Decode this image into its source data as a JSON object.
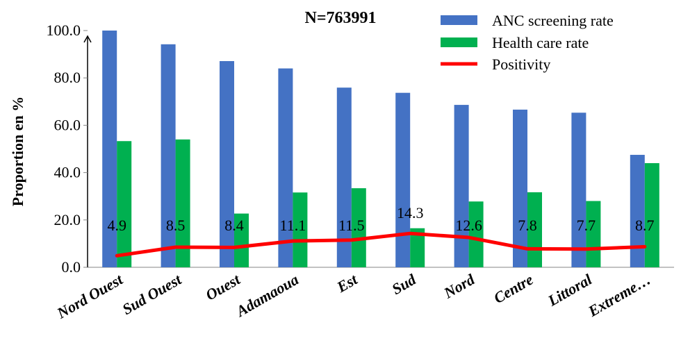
{
  "chart_data": {
    "type": "bar",
    "annotation": "N=763991",
    "ylabel": "Proportion en %",
    "xlabel": "",
    "ylim": [
      0,
      100
    ],
    "yticks": [
      "0.0",
      "20.0",
      "40.0",
      "60.0",
      "80.0",
      "100.0"
    ],
    "categories": [
      "Nord Ouest",
      "Sud Ouest",
      "Ouest",
      "Adamaoua",
      "Est",
      "Sud",
      "Nord",
      "Centre",
      "Littoral",
      "Extreme…"
    ],
    "series": [
      {
        "name": "ANC screening rate",
        "kind": "bar",
        "color": "#4472C4",
        "values": [
          100.0,
          94.2,
          87.1,
          84.0,
          75.9,
          73.7,
          68.6,
          66.6,
          65.3,
          47.5
        ]
      },
      {
        "name": "Health care rate",
        "kind": "bar",
        "color": "#00B050",
        "values": [
          53.3,
          54.0,
          22.7,
          31.6,
          33.4,
          16.5,
          27.8,
          31.7,
          28.0,
          44.0
        ]
      },
      {
        "name": "Positivity",
        "kind": "line",
        "color": "#FF0000",
        "values": [
          4.9,
          8.5,
          8.4,
          11.1,
          11.5,
          14.3,
          12.6,
          7.8,
          7.7,
          8.7
        ],
        "labels": [
          "4.9",
          "8.5",
          "8.4",
          "11.1",
          "11.5",
          "14.3",
          "12.6",
          "7.8",
          "7.7",
          "8.7"
        ]
      }
    ],
    "legend": "top-right",
    "grid": false
  }
}
